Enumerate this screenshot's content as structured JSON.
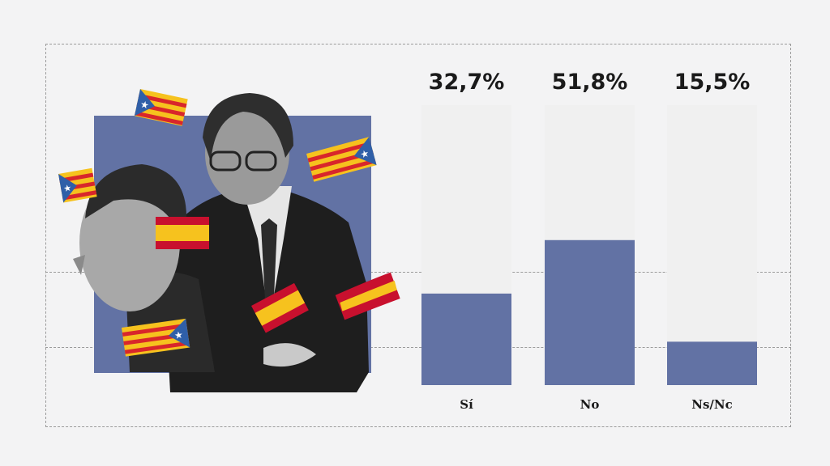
{
  "chart_data": {
    "type": "bar",
    "categories": [
      "Sí",
      "No",
      "Ns/Nc"
    ],
    "values": [
      32.7,
      51.8,
      15.5
    ],
    "value_labels": [
      "32,7%",
      "51,8%",
      "15,5%"
    ],
    "ylim": [
      0,
      100
    ],
    "title": "",
    "xlabel": "",
    "ylabel": "",
    "grid": false,
    "colors": {
      "bar": "#6272a4",
      "track": "#f0f0f0",
      "background": "#f3f3f4"
    }
  },
  "illustration": {
    "bg_color": "#6272a4"
  }
}
